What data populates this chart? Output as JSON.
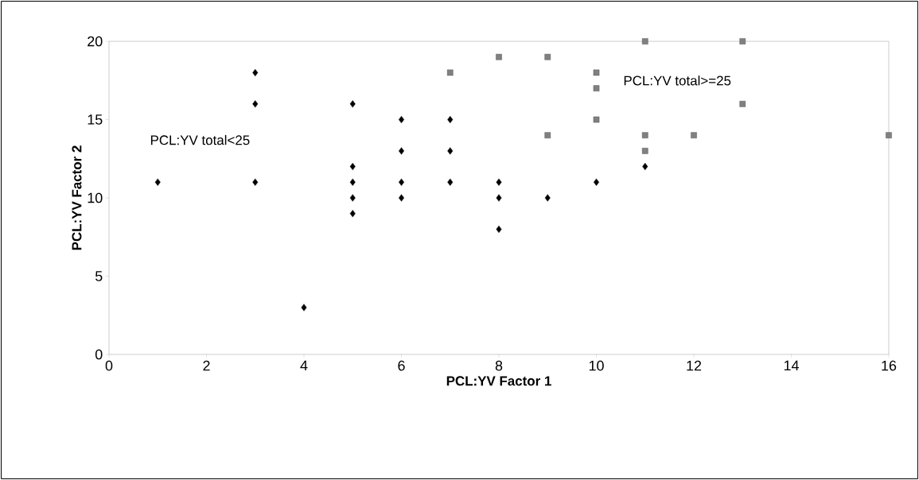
{
  "chart_data": {
    "type": "scatter",
    "xlabel": "PCL:YV Factor 1",
    "ylabel": "PCL:YV Factor 2",
    "xlim": [
      0,
      16
    ],
    "ylim": [
      0,
      20
    ],
    "xticks": [
      0,
      2,
      4,
      6,
      8,
      10,
      12,
      14,
      16
    ],
    "yticks": [
      0,
      5,
      10,
      15,
      20
    ],
    "series": [
      {
        "name": "PCL:YV total<25",
        "color": "#000000",
        "marker": "diamond",
        "x": [
          1,
          3,
          3,
          3,
          4,
          5,
          5,
          5,
          5,
          5,
          6,
          6,
          6,
          6,
          7,
          7,
          7,
          8,
          8,
          8,
          9,
          10,
          11
        ],
        "values": [
          11,
          18,
          16,
          11,
          3,
          16,
          12,
          11,
          10,
          9,
          15,
          13,
          11,
          10,
          15,
          13,
          11,
          11,
          10,
          8,
          10,
          11,
          12
        ]
      },
      {
        "name": "PCL:YV total>=25",
        "color": "#808080",
        "marker": "square",
        "x": [
          7,
          8,
          9,
          9,
          10,
          10,
          10,
          11,
          11,
          11,
          12,
          13,
          13,
          16
        ],
        "values": [
          18,
          19,
          19,
          14,
          18,
          17,
          15,
          20,
          14,
          13,
          14,
          20,
          16,
          14
        ]
      }
    ]
  }
}
